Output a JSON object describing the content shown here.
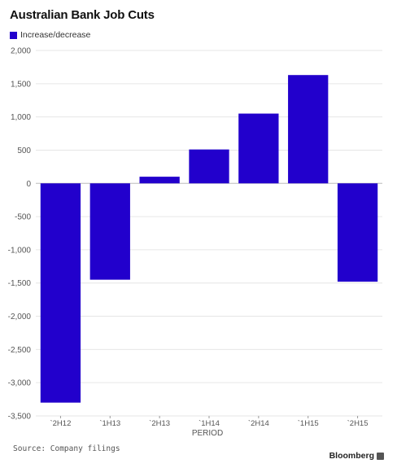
{
  "chart_data": {
    "type": "bar",
    "title": "Australian Bank Job Cuts",
    "series": [
      {
        "name": "Increase/decrease",
        "values": [
          -3300,
          -1450,
          100,
          510,
          1050,
          1630,
          -1480
        ]
      }
    ],
    "categories": [
      "`2H12",
      "`1H13",
      "`2H13",
      "`1H14",
      "`2H14",
      "`1H15",
      "`2H15"
    ],
    "xlabel": "PERIOD",
    "ylabel": "",
    "ylim": [
      -3500,
      2000
    ],
    "yticks": [
      2000,
      1500,
      1000,
      500,
      0,
      -500,
      -1000,
      -1500,
      -2000,
      -2500,
      -3000,
      -3500
    ],
    "ytick_labels": [
      "2,000",
      "1,500",
      "1,000",
      "500",
      "0",
      "-500",
      "-1,000",
      "-1,500",
      "-2,000",
      "-2,500",
      "-3,000",
      "-3,500"
    ],
    "grid": true,
    "legend_position": "top-left",
    "bar_color": "#2200cc"
  },
  "footer": {
    "source": "Source: Company filings",
    "brand": "Bloomberg"
  }
}
